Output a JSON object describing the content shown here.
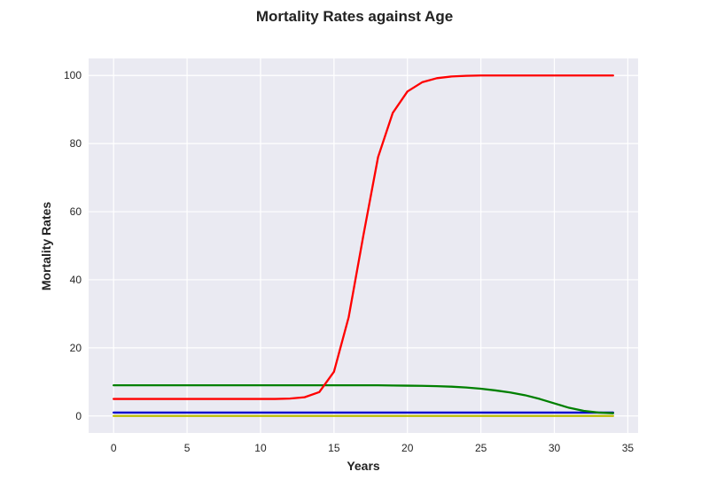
{
  "chart_data": {
    "type": "line",
    "title": "Mortality Rates against Age",
    "xlabel": "Years",
    "ylabel": "Mortality Rates",
    "xlim": [
      -1.7,
      35.7
    ],
    "ylim": [
      -5,
      105
    ],
    "xticks": [
      0,
      5,
      10,
      15,
      20,
      25,
      30,
      35
    ],
    "yticks": [
      0,
      20,
      40,
      60,
      80,
      100
    ],
    "grid": true,
    "x": [
      0,
      1,
      2,
      3,
      4,
      5,
      6,
      7,
      8,
      9,
      10,
      11,
      12,
      13,
      14,
      15,
      16,
      17,
      18,
      19,
      20,
      21,
      22,
      23,
      24,
      25,
      26,
      27,
      28,
      29,
      30,
      31,
      32,
      33,
      34
    ],
    "series": [
      {
        "color": "#ff0000",
        "values": [
          5,
          5,
          5,
          5,
          5,
          5,
          5,
          5,
          5,
          5,
          5,
          5,
          5.1,
          5.5,
          7,
          13,
          29,
          53,
          76,
          89,
          95.3,
          98,
          99.2,
          99.7,
          99.9,
          100,
          100,
          100,
          100,
          100,
          100,
          100,
          100,
          100,
          100
        ]
      },
      {
        "color": "#008000",
        "values": [
          9,
          9,
          9,
          9,
          9,
          9,
          9,
          9,
          9,
          9,
          9,
          9,
          9,
          9,
          9,
          9,
          9,
          9,
          9,
          8.95,
          8.9,
          8.85,
          8.75,
          8.6,
          8.35,
          8,
          7.5,
          6.9,
          6.1,
          5,
          3.7,
          2.4,
          1.5,
          1,
          0.8
        ]
      },
      {
        "color": "#0000cc",
        "values": [
          1,
          1,
          1,
          1,
          1,
          1,
          1,
          1,
          1,
          1,
          1,
          1,
          1,
          1,
          1,
          1,
          1,
          1,
          1,
          1,
          1,
          1,
          1,
          1,
          1,
          1,
          1,
          1,
          1,
          1,
          1,
          1,
          1,
          1,
          1
        ]
      },
      {
        "color": "#bfbf00",
        "values": [
          0,
          0,
          0,
          0,
          0,
          0,
          0,
          0,
          0,
          0,
          0,
          0,
          0,
          0,
          0,
          0,
          0,
          0,
          0,
          0,
          0,
          0,
          0,
          0,
          0,
          0,
          0,
          0,
          0,
          0,
          0,
          0,
          0,
          0,
          0
        ]
      }
    ]
  }
}
